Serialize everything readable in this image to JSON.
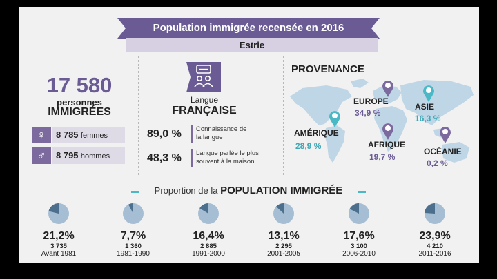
{
  "header": {
    "title": "Population immigrée recensée en 2016",
    "region": "Estrie"
  },
  "colors": {
    "purple": "#6b5b95",
    "purple_light": "#dedae6",
    "teal": "#4bb8c6",
    "pie_fill": "#a6bed3",
    "pie_slice": "#4c6f8d",
    "map": "#bfd6e6"
  },
  "population": {
    "total": "17 580",
    "persons_label": "personnes",
    "immigrants_label": "IMMIGRÉES",
    "women": {
      "icon": "female-symbol-icon",
      "count": "8 785",
      "label": "femmes"
    },
    "men": {
      "icon": "male-symbol-icon",
      "count": "8 795",
      "label": "hommes"
    }
  },
  "language": {
    "icon": "people-speech-icon",
    "small_label": "Langue",
    "big_label": "FRANÇAISE",
    "stats": [
      {
        "pct": "89,0 %",
        "desc_line1": "Connaissance de",
        "desc_line2": "la langue"
      },
      {
        "pct": "48,3 %",
        "desc_line1": "Langue parlée le plus",
        "desc_line2": "souvent à la maison"
      }
    ]
  },
  "provenance": {
    "title": "PROVENANCE",
    "continents": [
      {
        "name": "AMÉRIQUE",
        "pct": "28,9 %",
        "pin": "teal-pin-icon"
      },
      {
        "name": "EUROPE",
        "pct": "34,9 %",
        "pin": "purple-pin-icon"
      },
      {
        "name": "ASIE",
        "pct": "16,3 %",
        "pin": "teal-pin-icon"
      },
      {
        "name": "AFRIQUE",
        "pct": "19,7 %",
        "pin": "purple-pin-icon"
      },
      {
        "name": "OCÉANIE",
        "pct": "0,2 %",
        "pin": "purple-pin-icon"
      }
    ]
  },
  "proportion": {
    "title_prefix": "Proportion de la",
    "title_bold": "POPULATION IMMIGRÉE"
  },
  "chart_data": {
    "type": "pie",
    "title": "Proportion de la POPULATION IMMIGRÉE",
    "categories": [
      "Avant 1981",
      "1981-1990",
      "1991-2000",
      "2001-2005",
      "2006-2010",
      "2011-2016"
    ],
    "values": [
      21.2,
      7.7,
      16.4,
      13.1,
      17.6,
      23.9
    ],
    "counts": [
      3735,
      1360,
      2885,
      2295,
      3100,
      4210
    ],
    "value_labels": [
      "21,2%",
      "7,7%",
      "16,4%",
      "13,1%",
      "17,6%",
      "23,9%"
    ],
    "count_labels": [
      "3 735",
      "1 360",
      "2 885",
      "2 295",
      "3 100",
      "4 210"
    ]
  }
}
